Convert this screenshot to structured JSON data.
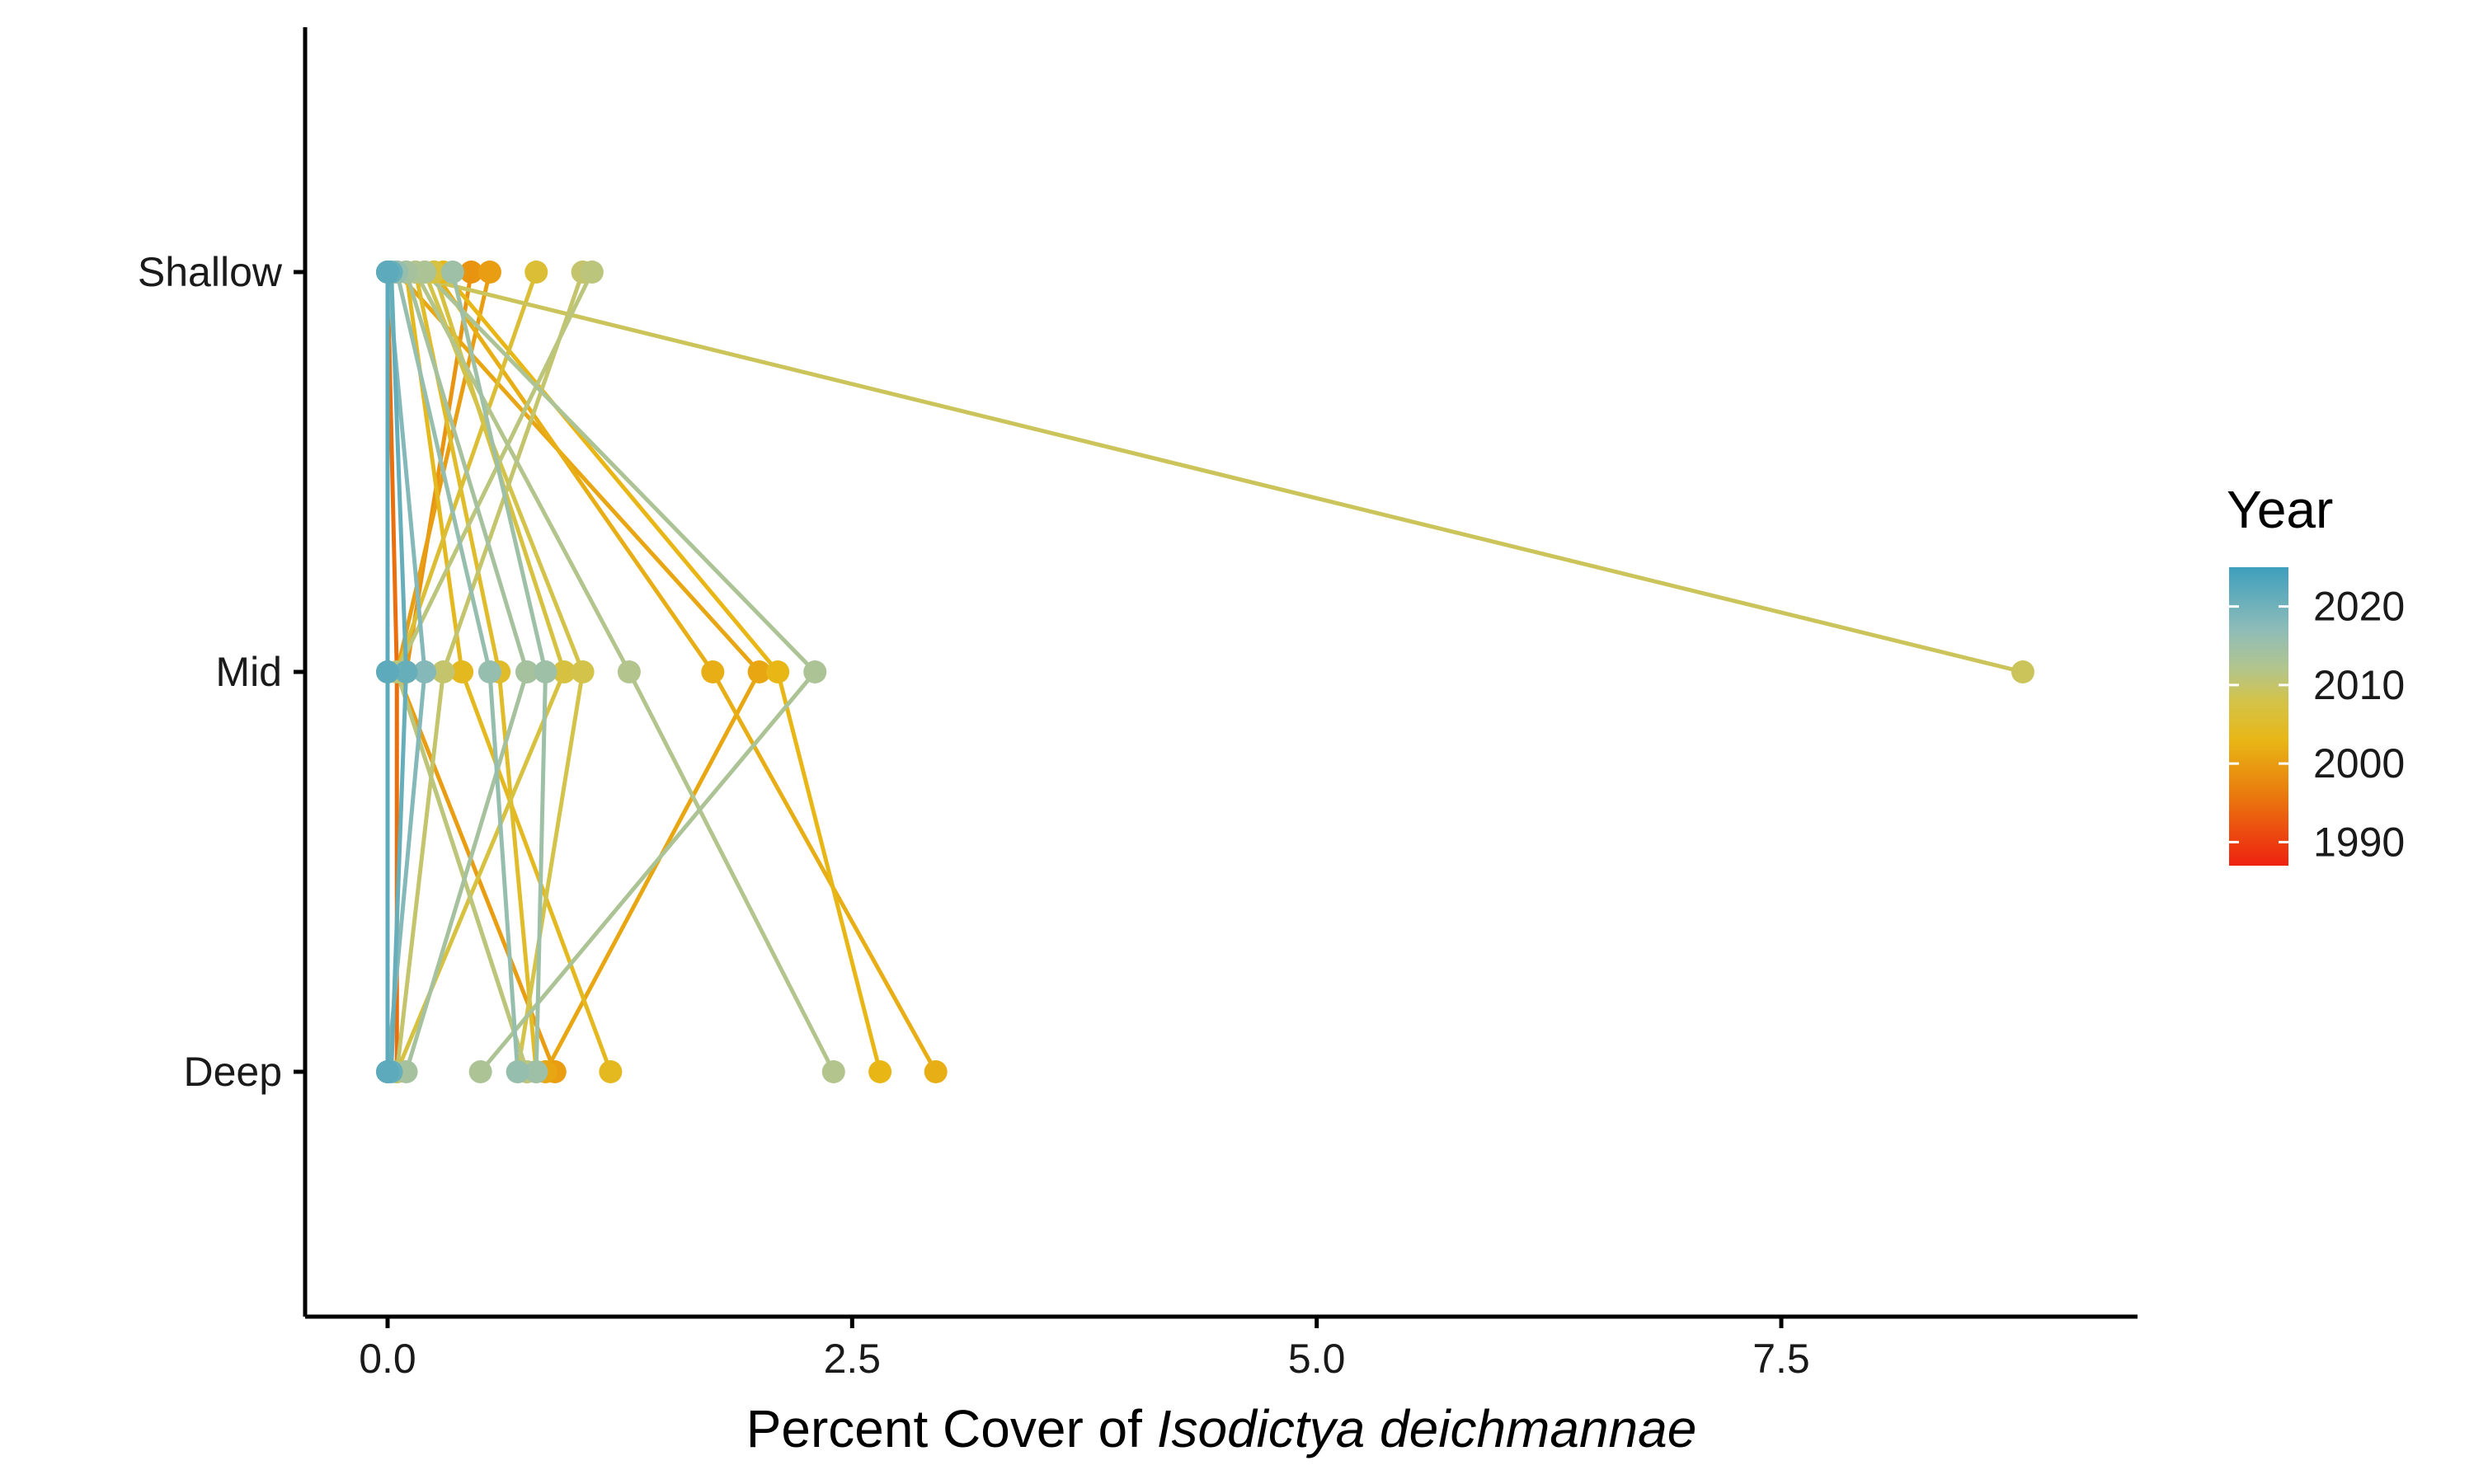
{
  "chart_data": {
    "type": "line",
    "title": "",
    "xlabel_prefix": "Percent Cover of ",
    "xlabel_italic": "Isodictya deichmannae",
    "ylabel": "",
    "x_ticks": [
      "0.0",
      "2.5",
      "5.0",
      "7.5"
    ],
    "x_tick_values": [
      0,
      2.5,
      5,
      7.5
    ],
    "xlim": [
      -0.45,
      9.3
    ],
    "y_categories": [
      "Deep",
      "Mid",
      "Shallow"
    ],
    "grid": false,
    "legend": {
      "title": "Year",
      "position": "right",
      "labels": [
        "2020",
        "2010",
        "2000",
        "1990"
      ],
      "label_values": [
        2020,
        2010,
        2000,
        1990
      ],
      "range": [
        1987,
        2025
      ]
    },
    "colormap": [
      {
        "year": 1987,
        "color": "#ee2211"
      },
      {
        "year": 1997,
        "color": "#e9830e"
      },
      {
        "year": 2003,
        "color": "#e8b716"
      },
      {
        "year": 2008,
        "color": "#d3c34a"
      },
      {
        "year": 2012,
        "color": "#b3c58c"
      },
      {
        "year": 2017,
        "color": "#8fbcb8"
      },
      {
        "year": 2025,
        "color": "#3e9fbd"
      }
    ],
    "series": [
      {
        "year": 2009,
        "values": {
          "Shallow": 0.05,
          "Mid": 8.8
        }
      },
      {
        "year": 2011,
        "values": {
          "Shallow": 1.1,
          "Mid": 0.05,
          "Deep": 0.75
        }
      },
      {
        "year": 2013,
        "values": {
          "Shallow": 0.2,
          "Mid": 2.3,
          "Deep": 0.5
        }
      },
      {
        "year": 2004,
        "values": {
          "Shallow": 0.1,
          "Mid": 0.4,
          "Deep": 1.2
        }
      },
      {
        "year": 2002,
        "values": {
          "Shallow": 0.25,
          "Mid": 1.75,
          "Deep": 2.95
        }
      },
      {
        "year": 2001,
        "values": {
          "Shallow": 0.05,
          "Mid": 2.0,
          "Deep": 0.85
        }
      },
      {
        "year": 2003,
        "values": {
          "Shallow": 0.3,
          "Mid": 2.1,
          "Deep": 2.65
        }
      },
      {
        "year": 2012,
        "values": {
          "Shallow": 0.15,
          "Mid": 1.3,
          "Deep": 2.4
        }
      },
      {
        "year": 2000,
        "values": {
          "Shallow": 0.55,
          "Mid": 0.05,
          "Deep": 0.9
        }
      },
      {
        "year": 1999,
        "values": {
          "Shallow": 0.45,
          "Mid": 0.1
        }
      },
      {
        "year": 2006,
        "values": {
          "Shallow": 0.8,
          "Mid": 0.05,
          "Deep": 0.75
        }
      },
      {
        "year": 2010,
        "values": {
          "Shallow": 1.05,
          "Mid": 0.3,
          "Deep": 0.05
        }
      },
      {
        "year": 2015,
        "values": {
          "Shallow": 0.35,
          "Mid": 0.85,
          "Deep": 0.8
        }
      },
      {
        "year": 2008,
        "values": {
          "Shallow": 0.2,
          "Mid": 1.05,
          "Deep": 0.7
        }
      },
      {
        "year": 2005,
        "values": {
          "Shallow": 0.15,
          "Mid": 0.6,
          "Deep": 0.8
        }
      },
      {
        "year": 2014,
        "values": {
          "Shallow": 0.1,
          "Mid": 0.75,
          "Deep": 0.1
        }
      },
      {
        "year": 2016,
        "values": {
          "Shallow": 0.05,
          "Mid": 0.55,
          "Deep": 0.7
        }
      },
      {
        "year": 2007,
        "values": {
          "Shallow": 0.25,
          "Mid": 0.95,
          "Deep": 0.05
        }
      },
      {
        "year": 1995,
        "values": {
          "Shallow": 0.0,
          "Mid": 0.05,
          "Deep": 0.05
        }
      },
      {
        "year": 2018,
        "values": {
          "Shallow": 0.0,
          "Mid": 0.2,
          "Deep": 0.0
        }
      },
      {
        "year": 2019,
        "values": {
          "Shallow": 0.0,
          "Mid": 0.0,
          "Deep": 0.0
        }
      },
      {
        "year": 2021,
        "values": {
          "Shallow": 0.02,
          "Mid": 0.1,
          "Deep": 0.02
        }
      },
      {
        "year": 2022,
        "values": {
          "Shallow": 0.0,
          "Mid": 0.0,
          "Deep": 0.0
        }
      }
    ]
  }
}
